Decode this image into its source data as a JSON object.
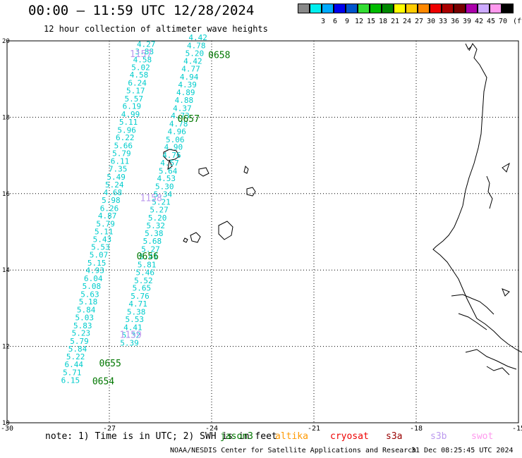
{
  "title": "00:00 — 11:59 UTC 12/28/2024",
  "subtitle": "12 hour collection of altimeter wave heights",
  "scale": {
    "unit": "(ft)",
    "swatches": [
      {
        "color": "#888888",
        "label": ""
      },
      {
        "color": "#00eeee",
        "label": "3"
      },
      {
        "color": "#00aaff",
        "label": "6"
      },
      {
        "color": "#0000ee",
        "label": "9"
      },
      {
        "color": "#0055cc",
        "label": "12"
      },
      {
        "color": "#33dd33",
        "label": "15"
      },
      {
        "color": "#00bb00",
        "label": "18"
      },
      {
        "color": "#008800",
        "label": "21"
      },
      {
        "color": "#ffff00",
        "label": "24"
      },
      {
        "color": "#ffcc00",
        "label": "27"
      },
      {
        "color": "#ff8800",
        "label": "30"
      },
      {
        "color": "#ee0000",
        "label": "33"
      },
      {
        "color": "#aa0000",
        "label": "36"
      },
      {
        "color": "#770000",
        "label": "39"
      },
      {
        "color": "#aa00aa",
        "label": "42"
      },
      {
        "color": "#ccaaff",
        "label": "45"
      },
      {
        "color": "#ff99ee",
        "label": "70"
      },
      {
        "color": "#000000",
        "label": ""
      }
    ]
  },
  "axes": {
    "x_ticks": [
      "-30",
      "-27",
      "-24",
      "-21",
      "-18",
      "-15"
    ],
    "y_ticks": [
      "20",
      "18",
      "16",
      "14",
      "12",
      "10"
    ]
  },
  "colors": {
    "points": "#00cccc",
    "jason": "#007700",
    "lilac": "#bb99ee"
  },
  "chart_data": {
    "type": "scatter",
    "lon_range": [
      -30,
      -15
    ],
    "lat_range": [
      10,
      20
    ],
    "tracks": [
      {
        "time_labels": [
          {
            "text": "1157",
            "lon": -26.4,
            "lat": 19.65,
            "color": "lilac"
          },
          {
            "text": "1158",
            "lon": -26.1,
            "lat": 15.88,
            "color": "lilac"
          },
          {
            "text": "1159",
            "lon": -26.7,
            "lat": 12.3,
            "color": "lilac"
          }
        ],
        "points": [
          {
            "lon": -25.92,
            "lat": 19.92,
            "v": "4.27"
          },
          {
            "lon": -25.97,
            "lat": 19.72,
            "v": "3.88"
          },
          {
            "lon": -26.03,
            "lat": 19.51,
            "v": "4.58"
          },
          {
            "lon": -26.08,
            "lat": 19.31,
            "v": "5.02"
          },
          {
            "lon": -26.13,
            "lat": 19.11,
            "v": "4.58"
          },
          {
            "lon": -26.18,
            "lat": 18.9,
            "v": "6.24"
          },
          {
            "lon": -26.23,
            "lat": 18.7,
            "v": "5.17"
          },
          {
            "lon": -26.28,
            "lat": 18.49,
            "v": "5.57"
          },
          {
            "lon": -26.34,
            "lat": 18.29,
            "v": "6.19"
          },
          {
            "lon": -26.38,
            "lat": 18.08,
            "v": "4.99"
          },
          {
            "lon": -26.44,
            "lat": 17.88,
            "v": "5.11"
          },
          {
            "lon": -26.49,
            "lat": 17.67,
            "v": "5.96"
          },
          {
            "lon": -26.54,
            "lat": 17.47,
            "v": "6.22"
          },
          {
            "lon": -26.59,
            "lat": 17.26,
            "v": "5.66"
          },
          {
            "lon": -26.64,
            "lat": 17.06,
            "v": "5.79"
          },
          {
            "lon": -26.69,
            "lat": 16.85,
            "v": "6.11"
          },
          {
            "lon": -26.75,
            "lat": 16.65,
            "v": "7.35"
          },
          {
            "lon": -26.8,
            "lat": 16.44,
            "v": "5.49"
          },
          {
            "lon": -26.85,
            "lat": 16.24,
            "v": "5.24"
          },
          {
            "lon": -26.9,
            "lat": 16.03,
            "v": "4.68"
          },
          {
            "lon": -26.95,
            "lat": 15.83,
            "v": "5.98"
          },
          {
            "lon": -27.0,
            "lat": 15.62,
            "v": "6.26"
          },
          {
            "lon": -27.06,
            "lat": 15.42,
            "v": "4.87"
          },
          {
            "lon": -27.11,
            "lat": 15.21,
            "v": "5.79"
          },
          {
            "lon": -27.16,
            "lat": 15.01,
            "v": "5.11"
          },
          {
            "lon": -27.21,
            "lat": 14.81,
            "v": "5.43"
          },
          {
            "lon": -27.26,
            "lat": 14.6,
            "v": "5.53"
          },
          {
            "lon": -27.31,
            "lat": 14.4,
            "v": "5.07"
          },
          {
            "lon": -27.37,
            "lat": 14.19,
            "v": "5.15"
          },
          {
            "lon": -27.42,
            "lat": 13.99,
            "v": "4.93"
          },
          {
            "lon": -27.47,
            "lat": 13.78,
            "v": "6.04"
          },
          {
            "lon": -27.52,
            "lat": 13.58,
            "v": "5.08"
          },
          {
            "lon": -27.57,
            "lat": 13.37,
            "v": "5.63"
          },
          {
            "lon": -27.62,
            "lat": 13.17,
            "v": "5.18"
          },
          {
            "lon": -27.68,
            "lat": 12.96,
            "v": "5.84"
          },
          {
            "lon": -27.73,
            "lat": 12.76,
            "v": "5.03"
          },
          {
            "lon": -27.78,
            "lat": 12.55,
            "v": "5.83"
          },
          {
            "lon": -27.83,
            "lat": 12.35,
            "v": "5.23"
          },
          {
            "lon": -27.88,
            "lat": 12.14,
            "v": "5.79"
          },
          {
            "lon": -27.93,
            "lat": 11.94,
            "v": "5.84"
          },
          {
            "lon": -27.99,
            "lat": 11.73,
            "v": "5.22"
          },
          {
            "lon": -28.04,
            "lat": 11.53,
            "v": "6.44"
          },
          {
            "lon": -28.09,
            "lat": 11.32,
            "v": "5.71"
          },
          {
            "lon": -28.14,
            "lat": 11.12,
            "v": "6.15"
          }
        ]
      },
      {
        "time_labels": [
          {
            "text": "0658",
            "lon": -24.1,
            "lat": 19.62,
            "color": "jason"
          },
          {
            "text": "0657",
            "lon": -25.0,
            "lat": 17.95,
            "color": "jason"
          },
          {
            "text": "0656",
            "lon": -26.2,
            "lat": 14.35,
            "color": "jason"
          },
          {
            "text": "0655",
            "lon": -27.3,
            "lat": 11.55,
            "color": "jason"
          },
          {
            "text": "0654",
            "lon": -27.5,
            "lat": 11.08,
            "color": "jason"
          }
        ],
        "points": [
          {
            "lon": -24.4,
            "lat": 20.09,
            "v": "4.42"
          },
          {
            "lon": -24.45,
            "lat": 19.88,
            "v": "4.78"
          },
          {
            "lon": -24.5,
            "lat": 19.68,
            "v": "5.20"
          },
          {
            "lon": -24.55,
            "lat": 19.47,
            "v": "4.42"
          },
          {
            "lon": -24.61,
            "lat": 19.27,
            "v": "4.77"
          },
          {
            "lon": -24.66,
            "lat": 19.06,
            "v": "4.94"
          },
          {
            "lon": -24.71,
            "lat": 18.86,
            "v": "4.39"
          },
          {
            "lon": -24.76,
            "lat": 18.65,
            "v": "4.89"
          },
          {
            "lon": -24.81,
            "lat": 18.45,
            "v": "4.88"
          },
          {
            "lon": -24.86,
            "lat": 18.24,
            "v": "4.37"
          },
          {
            "lon": -24.92,
            "lat": 18.04,
            "v": "4.73"
          },
          {
            "lon": -24.97,
            "lat": 17.83,
            "v": "4.78"
          },
          {
            "lon": -25.02,
            "lat": 17.63,
            "v": "4.96"
          },
          {
            "lon": -25.07,
            "lat": 17.42,
            "v": "5.06"
          },
          {
            "lon": -25.12,
            "lat": 17.22,
            "v": "4.90"
          },
          {
            "lon": -25.17,
            "lat": 17.01,
            "v": "4.76"
          },
          {
            "lon": -25.23,
            "lat": 16.81,
            "v": "4.57"
          },
          {
            "lon": -25.28,
            "lat": 16.6,
            "v": "5.64"
          },
          {
            "lon": -25.33,
            "lat": 16.4,
            "v": "4.53"
          },
          {
            "lon": -25.38,
            "lat": 16.19,
            "v": "5.30"
          },
          {
            "lon": -25.43,
            "lat": 15.99,
            "v": "5.34"
          },
          {
            "lon": -25.48,
            "lat": 15.78,
            "v": "5.21"
          },
          {
            "lon": -25.54,
            "lat": 15.58,
            "v": "5.27"
          },
          {
            "lon": -25.59,
            "lat": 15.37,
            "v": "5.20"
          },
          {
            "lon": -25.64,
            "lat": 15.17,
            "v": "5.32"
          },
          {
            "lon": -25.69,
            "lat": 14.96,
            "v": "5.38"
          },
          {
            "lon": -25.74,
            "lat": 14.76,
            "v": "5.68"
          },
          {
            "lon": -25.79,
            "lat": 14.55,
            "v": "5.27"
          },
          {
            "lon": -25.85,
            "lat": 14.35,
            "v": "5.41"
          },
          {
            "lon": -25.9,
            "lat": 14.14,
            "v": "5.81"
          },
          {
            "lon": -25.95,
            "lat": 13.94,
            "v": "5.46"
          },
          {
            "lon": -26.0,
            "lat": 13.73,
            "v": "5.52"
          },
          {
            "lon": -26.05,
            "lat": 13.53,
            "v": "5.65"
          },
          {
            "lon": -26.1,
            "lat": 13.32,
            "v": "5.76"
          },
          {
            "lon": -26.16,
            "lat": 13.12,
            "v": "4.71"
          },
          {
            "lon": -26.21,
            "lat": 12.91,
            "v": "5.38"
          },
          {
            "lon": -26.26,
            "lat": 12.71,
            "v": "5.53"
          },
          {
            "lon": -26.31,
            "lat": 12.5,
            "v": "4.41"
          },
          {
            "lon": -26.36,
            "lat": 12.3,
            "v": "5.32"
          },
          {
            "lon": -26.41,
            "lat": 12.09,
            "v": "5.39"
          }
        ]
      }
    ]
  },
  "footer": {
    "note": "note: 1) Time is in UTC; 2) SWH is in feet",
    "legend": [
      {
        "text": "jason3",
        "color": "#007700"
      },
      {
        "text": "altika",
        "color": "#ff9900"
      },
      {
        "text": "cryosat",
        "color": "#ee0000"
      },
      {
        "text": "s3a",
        "color": "#990000"
      },
      {
        "text": "s3b",
        "color": "#bb99ee"
      },
      {
        "text": "swot",
        "color": "#ff99ee"
      }
    ],
    "credit": "NOAA/NESDIS Center for Satellite Applications and Research",
    "stamp": "31 Dec 08:25:45 UTC 2024"
  }
}
